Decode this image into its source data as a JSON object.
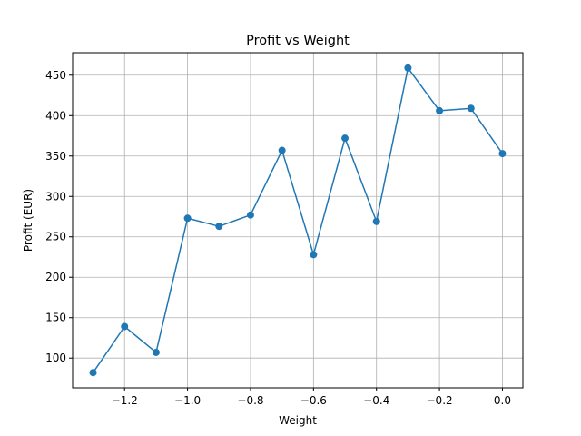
{
  "chart_data": {
    "type": "line",
    "title": "Profit vs Weight",
    "xlabel": "Weight",
    "ylabel": "Profit (EUR)",
    "x": [
      -1.3,
      -1.2,
      -1.1,
      -1.0,
      -0.9,
      -0.8,
      -0.7,
      -0.6,
      -0.5,
      -0.4,
      -0.3,
      -0.2,
      -0.1,
      0.0
    ],
    "series": [
      {
        "values": [
          82,
          139,
          107,
          273,
          263,
          277,
          357,
          228,
          372,
          269,
          459,
          406,
          409,
          353
        ],
        "color": "#1f77b4",
        "marker": "circle"
      }
    ],
    "xlim": [
      -1.365,
      0.065
    ],
    "ylim": [
      63.15,
      477.85
    ],
    "xticks": [
      -1.2,
      -1.0,
      -0.8,
      -0.6,
      -0.4,
      -0.2,
      0.0
    ],
    "xtick_labels": [
      "−1.2",
      "−1.0",
      "−0.8",
      "−0.6",
      "−0.4",
      "−0.2",
      "0.0"
    ],
    "yticks": [
      100,
      150,
      200,
      250,
      300,
      350,
      400,
      450
    ],
    "ytick_labels": [
      "100",
      "150",
      "200",
      "250",
      "300",
      "350",
      "400",
      "450"
    ],
    "grid": true,
    "legend": "none"
  }
}
